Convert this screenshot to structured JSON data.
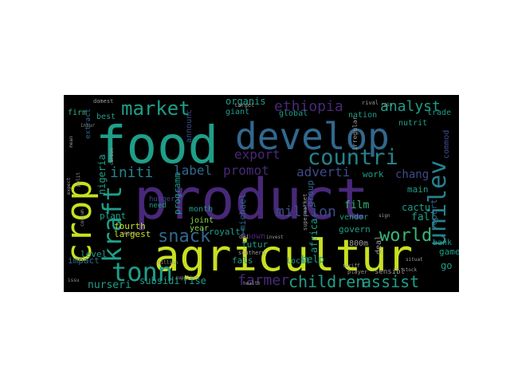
{
  "palette": {
    "yellow": "#c8e020",
    "lime": "#84d44b",
    "green": "#35b779",
    "teal": "#1f9e89",
    "cyan": "#26828e",
    "blue": "#31688e",
    "indigo": "#3e4a89",
    "purple": "#482878",
    "violet": "#440154",
    "gray": "#9a9a9a"
  },
  "words": [
    {
      "text": "food",
      "color": "teal"
    },
    {
      "text": "develop",
      "color": "blue"
    },
    {
      "text": "product",
      "color": "purple"
    },
    {
      "text": "agricultur",
      "color": "yellow"
    },
    {
      "text": "crop",
      "color": "yellow"
    },
    {
      "text": "kraft",
      "color": "teal"
    },
    {
      "text": "tonn",
      "color": "teal"
    },
    {
      "text": "market",
      "color": "teal"
    },
    {
      "text": "countri",
      "color": "cyan"
    },
    {
      "text": "unilev",
      "color": "cyan"
    },
    {
      "text": "ethiopia",
      "color": "purple"
    },
    {
      "text": "analyst",
      "color": "teal"
    },
    {
      "text": "snack",
      "color": "blue"
    },
    {
      "text": "children",
      "color": "teal"
    },
    {
      "text": "assist",
      "color": "teal"
    },
    {
      "text": "world",
      "color": "green"
    },
    {
      "text": "million",
      "color": "indigo"
    },
    {
      "text": "farmer",
      "color": "purple"
    },
    {
      "text": "export",
      "color": "purple"
    },
    {
      "text": "initi",
      "color": "cyan"
    },
    {
      "text": "label",
      "color": "blue"
    },
    {
      "text": "promot",
      "color": "purple"
    },
    {
      "text": "adverti",
      "color": "indigo"
    },
    {
      "text": "chang",
      "color": "indigo"
    },
    {
      "text": "nigeria",
      "color": "teal"
    },
    {
      "text": "fourth",
      "color": "yellow"
    },
    {
      "text": "largest",
      "color": "yellow"
    },
    {
      "text": "firm",
      "color": "green"
    },
    {
      "text": "plant",
      "color": "teal"
    },
    {
      "text": "cactu",
      "color": "teal"
    },
    {
      "text": "film",
      "color": "green"
    },
    {
      "text": "fall",
      "color": "teal"
    },
    {
      "text": "nurseri",
      "color": "teal"
    },
    {
      "text": "subsidi",
      "color": "teal"
    },
    {
      "text": "rise",
      "color": "teal"
    },
    {
      "text": "help",
      "color": "teal"
    },
    {
      "text": "go",
      "color": "teal"
    },
    {
      "text": "game",
      "color": "teal"
    },
    {
      "text": "bank",
      "color": "teal"
    },
    {
      "text": "africa",
      "color": "teal"
    },
    {
      "text": "govern",
      "color": "teal"
    },
    {
      "text": "report",
      "color": "blue"
    },
    {
      "text": "group",
      "color": "blue"
    },
    {
      "text": "level",
      "color": "teal"
    },
    {
      "text": "impact",
      "color": "blue"
    },
    {
      "text": "organis",
      "color": "teal"
    },
    {
      "text": "futur",
      "color": "teal"
    },
    {
      "text": "local",
      "color": "teal"
    },
    {
      "text": "fals",
      "color": "teal"
    },
    {
      "text": "joint",
      "color": "lime"
    },
    {
      "text": "year",
      "color": "lime"
    },
    {
      "text": "month",
      "color": "teal"
    },
    {
      "text": "michael",
      "color": "blue"
    },
    {
      "text": "royalti",
      "color": "teal"
    },
    {
      "text": "programm",
      "color": "teal"
    },
    {
      "text": "work",
      "color": "teal"
    },
    {
      "text": "main",
      "color": "teal"
    },
    {
      "text": "vendor",
      "color": "teal"
    },
    {
      "text": "nutrit",
      "color": "teal"
    },
    {
      "text": "trade",
      "color": "teal"
    },
    {
      "text": "global",
      "color": "teal"
    },
    {
      "text": "nation",
      "color": "teal"
    },
    {
      "text": "giant",
      "color": "teal"
    },
    {
      "text": "best",
      "color": "teal"
    },
    {
      "text": "need",
      "color": "teal"
    },
    {
      "text": "extract",
      "color": "blue"
    },
    {
      "text": "announc",
      "color": "indigo"
    },
    {
      "text": "commod",
      "color": "indigo"
    },
    {
      "text": "hunger",
      "color": "indigo"
    },
    {
      "text": "known",
      "color": "purple"
    },
    {
      "text": "dai",
      "color": "gray"
    },
    {
      "text": "southern",
      "color": "gray"
    },
    {
      "text": "supermarket",
      "color": "gray"
    },
    {
      "text": "800m",
      "color": "gray"
    },
    {
      "text": "deal",
      "color": "gray"
    },
    {
      "text": "sensibl",
      "color": "gray"
    },
    {
      "text": "domest",
      "color": "gray"
    },
    {
      "text": "irregular",
      "color": "gray"
    },
    {
      "text": "vegan",
      "color": "gray"
    },
    {
      "text": "supplier",
      "color": "gray"
    },
    {
      "text": "health",
      "color": "gray"
    },
    {
      "text": "tariff",
      "color": "gray"
    },
    {
      "text": "player",
      "color": "gray"
    },
    {
      "text": "situat",
      "color": "gray"
    },
    {
      "text": "sign",
      "color": "gray"
    },
    {
      "text": "target",
      "color": "gray"
    },
    {
      "text": "mean",
      "color": "gray"
    },
    {
      "text": "issu",
      "color": "gray"
    },
    {
      "text": "rival",
      "color": "gray"
    },
    {
      "text": "billion",
      "color": "gray"
    },
    {
      "text": "insur",
      "color": "gray"
    },
    {
      "text": "expect",
      "color": "gray"
    },
    {
      "text": "polit",
      "color": "gray"
    },
    {
      "text": "consum",
      "color": "gray"
    },
    {
      "text": "carbon",
      "color": "gray"
    },
    {
      "text": "invest",
      "color": "gray"
    },
    {
      "text": "stock",
      "color": "gray"
    },
    {
      "text": "rais",
      "color": "gray"
    }
  ]
}
